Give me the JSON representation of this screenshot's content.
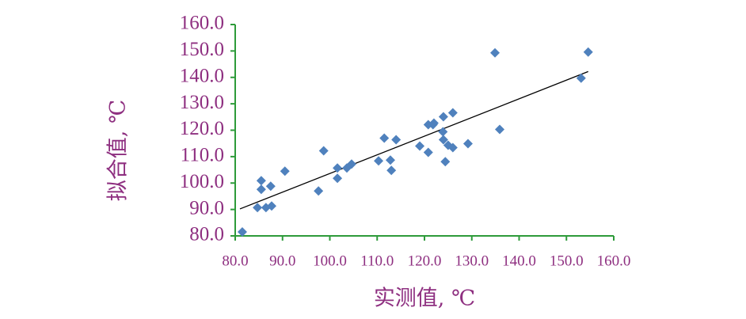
{
  "chart_data": {
    "type": "scatter",
    "x_label": "实测值, ℃",
    "y_label": "拟合值, ℃",
    "x": [
      81.5,
      84.7,
      85.5,
      85.5,
      86.5,
      87.7,
      87.5,
      90.5,
      97.6,
      98.7,
      101.6,
      101.6,
      103.6,
      104.6,
      110.3,
      111.5,
      112.8,
      113.0,
      114.0,
      119.0,
      120.8,
      120.8,
      121.8,
      122.0,
      123.9,
      124.0,
      124.0,
      124.4,
      125.0,
      126.0,
      126.0,
      129.2,
      134.9,
      135.9,
      153.1,
      154.6
    ],
    "values": [
      81.5,
      90.7,
      100.9,
      97.6,
      90.7,
      91.3,
      98.8,
      104.5,
      97.0,
      112.2,
      105.7,
      101.8,
      105.7,
      107.2,
      108.4,
      117.0,
      108.7,
      104.8,
      116.4,
      114.0,
      111.6,
      122.1,
      122.1,
      122.7,
      119.4,
      125.1,
      116.4,
      108.1,
      114.3,
      113.4,
      126.6,
      114.9,
      149.3,
      120.3,
      139.7,
      149.6
    ],
    "color": "#4f81bd",
    "trend_line": {
      "x": [
        81.0,
        154.6
      ],
      "values": [
        90.2,
        142.2
      ],
      "color": "#000000"
    },
    "axis_color": "#2e9b3a",
    "xlim": [
      80,
      160
    ],
    "ylim": [
      80,
      160
    ],
    "xticks": [
      {
        "value": 80,
        "label": "80.0"
      },
      {
        "value": 90,
        "label": "90.0"
      },
      {
        "value": 100,
        "label": "100.0"
      },
      {
        "value": 110,
        "label": "110.0"
      },
      {
        "value": 120,
        "label": "120.0"
      },
      {
        "value": 130,
        "label": "130.0"
      },
      {
        "value": 140,
        "label": "140.0"
      },
      {
        "value": 150,
        "label": "150.0"
      },
      {
        "value": 160,
        "label": "160.0"
      }
    ],
    "yticks": [
      {
        "value": 80,
        "label": "80.0"
      },
      {
        "value": 90,
        "label": "90.0"
      },
      {
        "value": 100,
        "label": "100.0"
      },
      {
        "value": 110,
        "label": "110.0"
      },
      {
        "value": 120,
        "label": "120.0"
      },
      {
        "value": 130,
        "label": "130.0"
      },
      {
        "value": 140,
        "label": "140.0"
      },
      {
        "value": 150,
        "label": "150.0"
      },
      {
        "value": 160,
        "label": "160.0"
      }
    ],
    "grid": false
  }
}
